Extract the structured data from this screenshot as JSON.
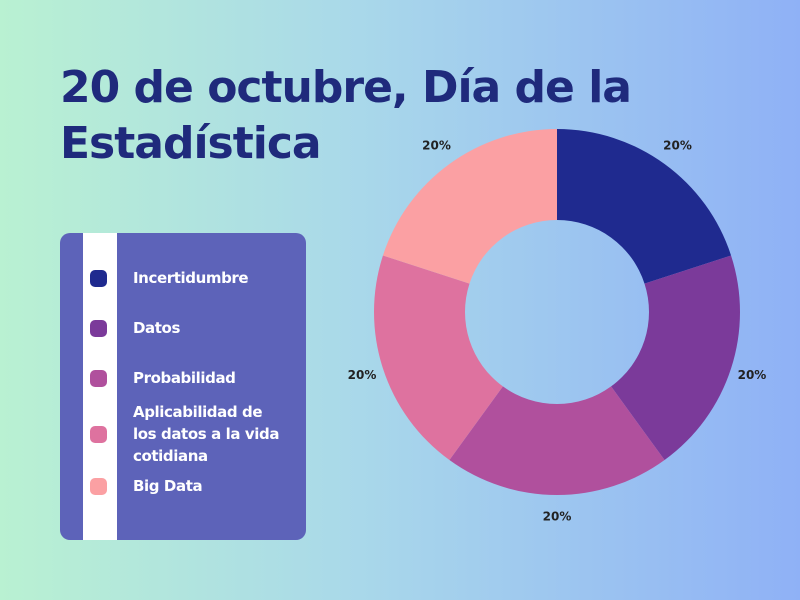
{
  "chart_data": {
    "type": "donut",
    "title": "20 de octubre, Día de la Estadística",
    "categories": [
      "Incertidumbre",
      "Datos",
      "Probabilidad",
      "Aplicabilidad de los datos a la vida cotidiana",
      "Big Data"
    ],
    "values": [
      20,
      20,
      20,
      20,
      20
    ],
    "value_labels": [
      "20%",
      "20%",
      "20%",
      "20%",
      "20%"
    ],
    "colors": [
      "#1f2a8f",
      "#7b3a9a",
      "#b0509d",
      "#de729f",
      "#fba0a3"
    ],
    "legend": "left"
  }
}
